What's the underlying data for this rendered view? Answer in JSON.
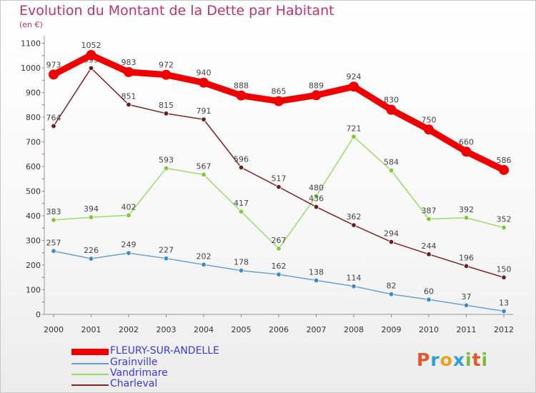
{
  "title": "Evolution du Montant de la Dette par Habitant",
  "subtitle": "(en €)",
  "logo": {
    "text": "Proxiti",
    "letters": [
      "P",
      "r",
      "o",
      "x",
      "i",
      "t",
      "i"
    ],
    "colors": [
      "#e8552a",
      "#2e9fd8",
      "#e8a21e",
      "#2e9fd8",
      "#7dbb35",
      "#e8552a",
      "#7dbb35"
    ]
  },
  "chart_data": {
    "type": "line",
    "title": "Evolution du Montant de la Dette par Habitant",
    "ylabel": "(en €)",
    "xlabel": "",
    "x": [
      "2000",
      "2001",
      "2002",
      "2003",
      "2004",
      "2005",
      "2006",
      "2007",
      "2008",
      "2009",
      "2010",
      "2011",
      "2012"
    ],
    "ylim": [
      0,
      1100
    ],
    "yticks": [
      "0",
      "100",
      "200",
      "300",
      "400",
      "500",
      "600",
      "700",
      "800",
      "900",
      "1000",
      "1100"
    ],
    "grid": false,
    "legend_position": "bottom-left",
    "series": [
      {
        "name": "FLEURY-SUR-ANDELLE",
        "color": "#ee0000",
        "values": [
          973,
          1052,
          983,
          972,
          940,
          888,
          865,
          889,
          924,
          830,
          750,
          660,
          586
        ],
        "labels": [
          "973",
          "1052",
          "983",
          "972",
          "940",
          "888",
          "865",
          "889",
          "924",
          "830",
          "750",
          "660",
          "586"
        ]
      },
      {
        "name": "Grainville",
        "color": "#6aa0d0",
        "values": [
          257,
          226,
          249,
          227,
          202,
          178,
          162,
          138,
          114,
          82,
          60,
          37,
          13
        ],
        "labels": [
          "257",
          "226",
          "249",
          "227",
          "202",
          "178",
          "162",
          "138",
          "114",
          "82",
          "60",
          "37",
          "13"
        ]
      },
      {
        "name": "Vandrimare",
        "color": "#99dd66",
        "values": [
          383,
          394,
          402,
          593,
          567,
          417,
          267,
          480,
          721,
          584,
          387,
          392,
          352
        ],
        "labels": [
          "383",
          "394",
          "402",
          "593",
          "567",
          "417",
          "267",
          "480",
          "721",
          "584",
          "387",
          "392",
          "352"
        ]
      },
      {
        "name": "Charleval",
        "color": "#7a2424",
        "values": [
          764,
          999,
          851,
          815,
          791,
          596,
          517,
          436,
          362,
          294,
          244,
          196,
          150
        ],
        "labels": [
          "764",
          "999",
          "851",
          "815",
          "791",
          "596",
          "517",
          "436",
          "362",
          "294",
          "244",
          "196",
          "150"
        ]
      }
    ]
  }
}
